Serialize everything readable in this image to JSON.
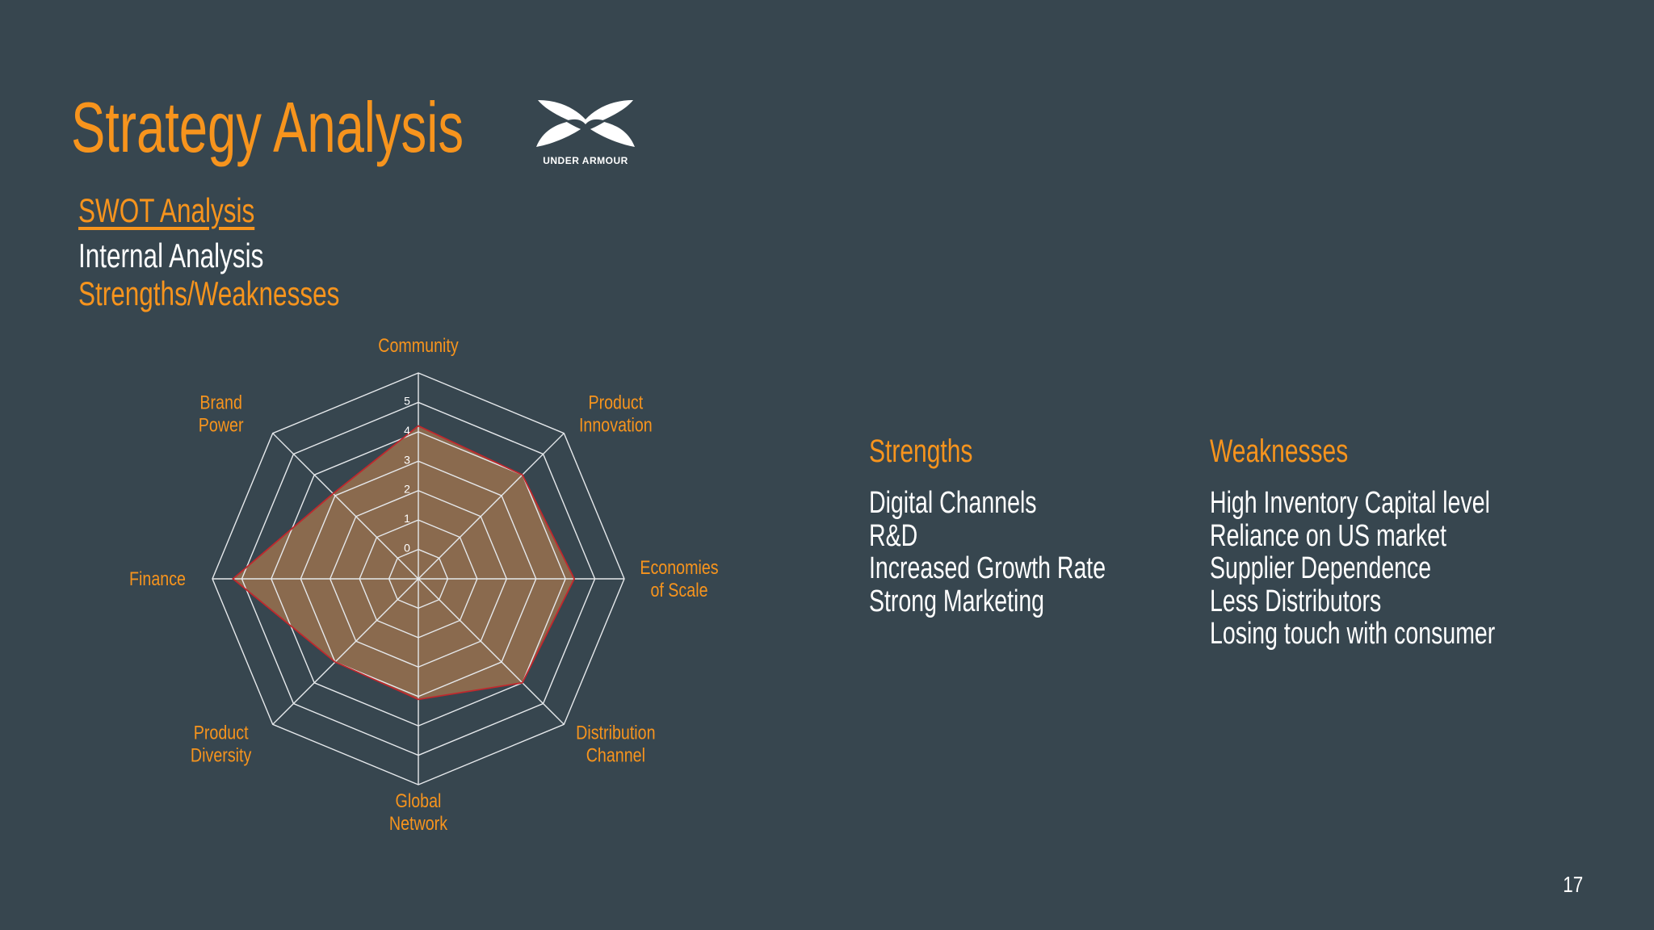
{
  "slide": {
    "title": "Strategy Analysis",
    "logo_text": "UNDER ARMOUR",
    "swot_link": "SWOT Analysis",
    "subtitle_internal": "Internal Analysis",
    "subtitle_sw": "Strengths/Weaknesses",
    "page_number": "17"
  },
  "colors": {
    "background": "#37464f",
    "accent": "#f7941d",
    "text": "#ffffff",
    "radar_fill": "#8a6a4e",
    "radar_line": "#c0282d",
    "grid": "#e6e9ec"
  },
  "strengths": {
    "heading": "Strengths",
    "items": [
      "Digital Channels",
      "R&D",
      "Increased Growth Rate",
      "Strong Marketing"
    ]
  },
  "weaknesses": {
    "heading": "Weaknesses",
    "items": [
      "High Inventory Capital level",
      "Reliance on US market",
      "Supplier Dependence",
      "Less Distributors",
      "Losing touch with consumer"
    ]
  },
  "chart_data": {
    "type": "radar",
    "categories": [
      [
        "Community"
      ],
      [
        "Product",
        "Innovation"
      ],
      [
        "Economies",
        "of Scale"
      ],
      [
        "Distribution",
        "Channel"
      ],
      [
        "Global",
        "Network"
      ],
      [
        "Product",
        "Diversity"
      ],
      [
        "Finance"
      ],
      [
        "Brand",
        "Power"
      ]
    ],
    "values": [
      4.2,
      4.0,
      4.3,
      4.0,
      3.1,
      3.0,
      5.3,
      3.1
    ],
    "radial_ticks": [
      "0",
      "1",
      "2",
      "3",
      "4",
      "5"
    ],
    "rmin": -1,
    "rmax": 6,
    "grid": true,
    "legend": "none"
  }
}
